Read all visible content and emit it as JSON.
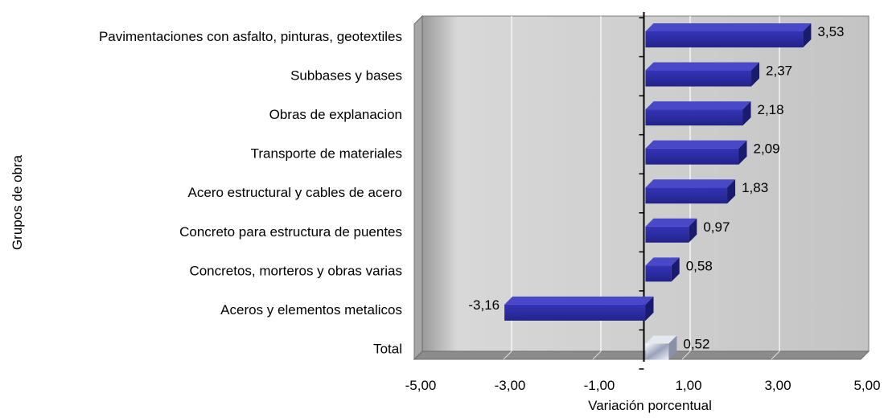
{
  "chart_data": {
    "type": "bar",
    "orientation": "horizontal",
    "style": "3d",
    "categories": [
      "Pavimentaciones con asfalto, pinturas, geotextiles",
      "Subbases y bases",
      "Obras de explanacion",
      "Transporte de materiales",
      "Acero estructural y cables de acero",
      "Concreto para estructura de puentes",
      "Concretos, morteros y obras varias",
      "Aceros y elementos metalicos",
      "Total"
    ],
    "values": [
      3.53,
      2.37,
      2.18,
      2.09,
      1.83,
      0.97,
      0.58,
      -3.16,
      0.52
    ],
    "value_labels": [
      "3,53",
      "2,37",
      "2,18",
      "2,09",
      "1,83",
      "0,97",
      "0,58",
      "-3,16",
      "0,52"
    ],
    "xlim": [
      -5,
      5
    ],
    "ticks": [
      -5,
      -3,
      -1,
      1,
      3,
      5
    ],
    "tick_labels": [
      "-5,00",
      "-3,00",
      "-1,00",
      "1,00",
      "3,00",
      "5,00"
    ],
    "xlabel": "Variación porcentual",
    "ylabel": "Grupos de obra",
    "grid": true,
    "bar_color": "#2b2b9a",
    "total_bar_color": "#c8ccd8",
    "wall_color": "#c0c0c0"
  }
}
